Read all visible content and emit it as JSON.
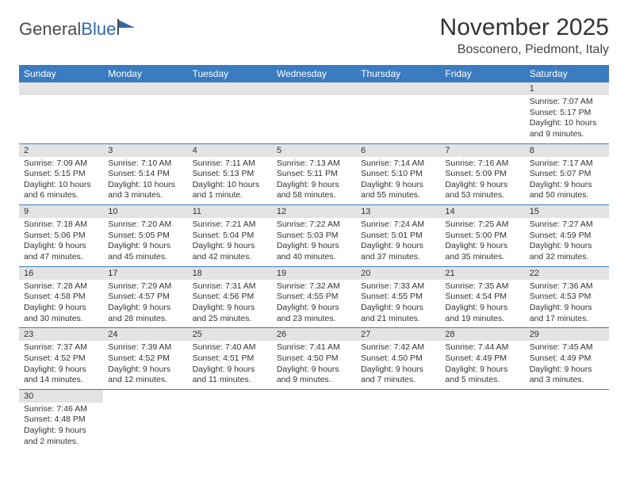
{
  "brand": {
    "part1": "General",
    "part2": "Blue"
  },
  "title": "November 2025",
  "location": "Bosconero, Piedmont, Italy",
  "colors": {
    "header_bg": "#3b7bbf",
    "header_text": "#ffffff",
    "daynum_bg": "#e3e3e3",
    "row_border": "#3b7bbf",
    "text": "#333333",
    "logo_gray": "#4a4a4a",
    "logo_blue": "#2f6aa8"
  },
  "typography": {
    "title_fontsize": 30,
    "location_fontsize": 16,
    "dayheader_fontsize": 12,
    "cell_fontsize": 10.5
  },
  "day_headers": [
    "Sunday",
    "Monday",
    "Tuesday",
    "Wednesday",
    "Thursday",
    "Friday",
    "Saturday"
  ],
  "weeks": [
    [
      null,
      null,
      null,
      null,
      null,
      null,
      {
        "n": "1",
        "r": "7:07 AM",
        "s": "5:17 PM",
        "d": "10 hours and 9 minutes."
      }
    ],
    [
      {
        "n": "2",
        "r": "7:09 AM",
        "s": "5:15 PM",
        "d": "10 hours and 6 minutes."
      },
      {
        "n": "3",
        "r": "7:10 AM",
        "s": "5:14 PM",
        "d": "10 hours and 3 minutes."
      },
      {
        "n": "4",
        "r": "7:11 AM",
        "s": "5:13 PM",
        "d": "10 hours and 1 minute."
      },
      {
        "n": "5",
        "r": "7:13 AM",
        "s": "5:11 PM",
        "d": "9 hours and 58 minutes."
      },
      {
        "n": "6",
        "r": "7:14 AM",
        "s": "5:10 PM",
        "d": "9 hours and 55 minutes."
      },
      {
        "n": "7",
        "r": "7:16 AM",
        "s": "5:09 PM",
        "d": "9 hours and 53 minutes."
      },
      {
        "n": "8",
        "r": "7:17 AM",
        "s": "5:07 PM",
        "d": "9 hours and 50 minutes."
      }
    ],
    [
      {
        "n": "9",
        "r": "7:18 AM",
        "s": "5:06 PM",
        "d": "9 hours and 47 minutes."
      },
      {
        "n": "10",
        "r": "7:20 AM",
        "s": "5:05 PM",
        "d": "9 hours and 45 minutes."
      },
      {
        "n": "11",
        "r": "7:21 AM",
        "s": "5:04 PM",
        "d": "9 hours and 42 minutes."
      },
      {
        "n": "12",
        "r": "7:22 AM",
        "s": "5:03 PM",
        "d": "9 hours and 40 minutes."
      },
      {
        "n": "13",
        "r": "7:24 AM",
        "s": "5:01 PM",
        "d": "9 hours and 37 minutes."
      },
      {
        "n": "14",
        "r": "7:25 AM",
        "s": "5:00 PM",
        "d": "9 hours and 35 minutes."
      },
      {
        "n": "15",
        "r": "7:27 AM",
        "s": "4:59 PM",
        "d": "9 hours and 32 minutes."
      }
    ],
    [
      {
        "n": "16",
        "r": "7:28 AM",
        "s": "4:58 PM",
        "d": "9 hours and 30 minutes."
      },
      {
        "n": "17",
        "r": "7:29 AM",
        "s": "4:57 PM",
        "d": "9 hours and 28 minutes."
      },
      {
        "n": "18",
        "r": "7:31 AM",
        "s": "4:56 PM",
        "d": "9 hours and 25 minutes."
      },
      {
        "n": "19",
        "r": "7:32 AM",
        "s": "4:55 PM",
        "d": "9 hours and 23 minutes."
      },
      {
        "n": "20",
        "r": "7:33 AM",
        "s": "4:55 PM",
        "d": "9 hours and 21 minutes."
      },
      {
        "n": "21",
        "r": "7:35 AM",
        "s": "4:54 PM",
        "d": "9 hours and 19 minutes."
      },
      {
        "n": "22",
        "r": "7:36 AM",
        "s": "4:53 PM",
        "d": "9 hours and 17 minutes."
      }
    ],
    [
      {
        "n": "23",
        "r": "7:37 AM",
        "s": "4:52 PM",
        "d": "9 hours and 14 minutes."
      },
      {
        "n": "24",
        "r": "7:39 AM",
        "s": "4:52 PM",
        "d": "9 hours and 12 minutes."
      },
      {
        "n": "25",
        "r": "7:40 AM",
        "s": "4:51 PM",
        "d": "9 hours and 11 minutes."
      },
      {
        "n": "26",
        "r": "7:41 AM",
        "s": "4:50 PM",
        "d": "9 hours and 9 minutes."
      },
      {
        "n": "27",
        "r": "7:42 AM",
        "s": "4:50 PM",
        "d": "9 hours and 7 minutes."
      },
      {
        "n": "28",
        "r": "7:44 AM",
        "s": "4:49 PM",
        "d": "9 hours and 5 minutes."
      },
      {
        "n": "29",
        "r": "7:45 AM",
        "s": "4:49 PM",
        "d": "9 hours and 3 minutes."
      }
    ],
    [
      {
        "n": "30",
        "r": "7:46 AM",
        "s": "4:48 PM",
        "d": "9 hours and 2 minutes."
      },
      null,
      null,
      null,
      null,
      null,
      null
    ]
  ],
  "labels": {
    "sunrise": "Sunrise:",
    "sunset": "Sunset:",
    "daylight": "Daylight:"
  }
}
